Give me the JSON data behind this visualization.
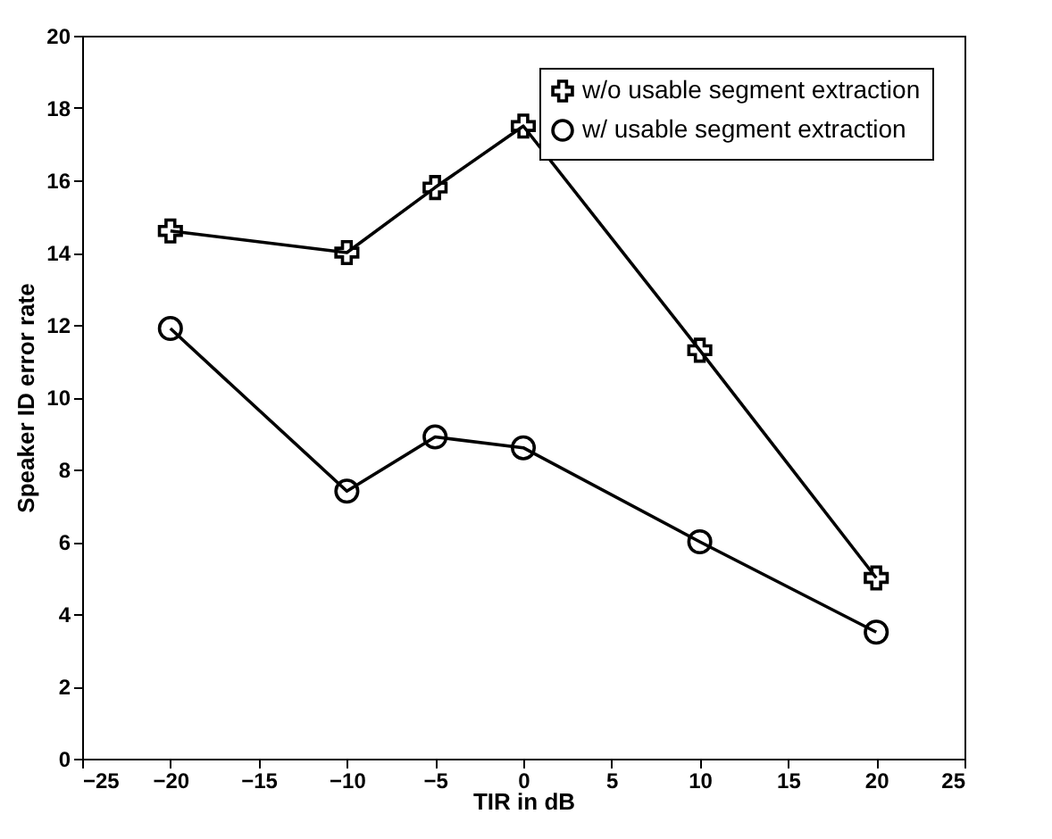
{
  "chart_data": {
    "type": "line",
    "x": [
      -20,
      -10,
      -5,
      0,
      10,
      20
    ],
    "series": [
      {
        "name": "w/o usable segment extraction",
        "color": "#000000",
        "marker": "cross",
        "values": [
          14.6,
          14.0,
          15.8,
          17.5,
          11.3,
          5.0
        ]
      },
      {
        "name": "w/  usable segment extraction",
        "color": "#000000",
        "marker": "circle",
        "values": [
          11.9,
          7.4,
          8.9,
          8.6,
          6.0,
          3.5
        ]
      }
    ],
    "xlabel": "TIR in dB",
    "ylabel": "Speaker ID error rate",
    "xlim": [
      -25,
      25
    ],
    "xticks": [
      -25,
      -20,
      -15,
      -10,
      -5,
      0,
      5,
      10,
      15,
      20,
      25
    ],
    "ylim": [
      0,
      20
    ],
    "yticks": [
      0,
      2,
      4,
      6,
      8,
      10,
      12,
      14,
      16,
      18,
      20
    ],
    "grid": false,
    "legend": "top right",
    "line_style": "solid"
  }
}
